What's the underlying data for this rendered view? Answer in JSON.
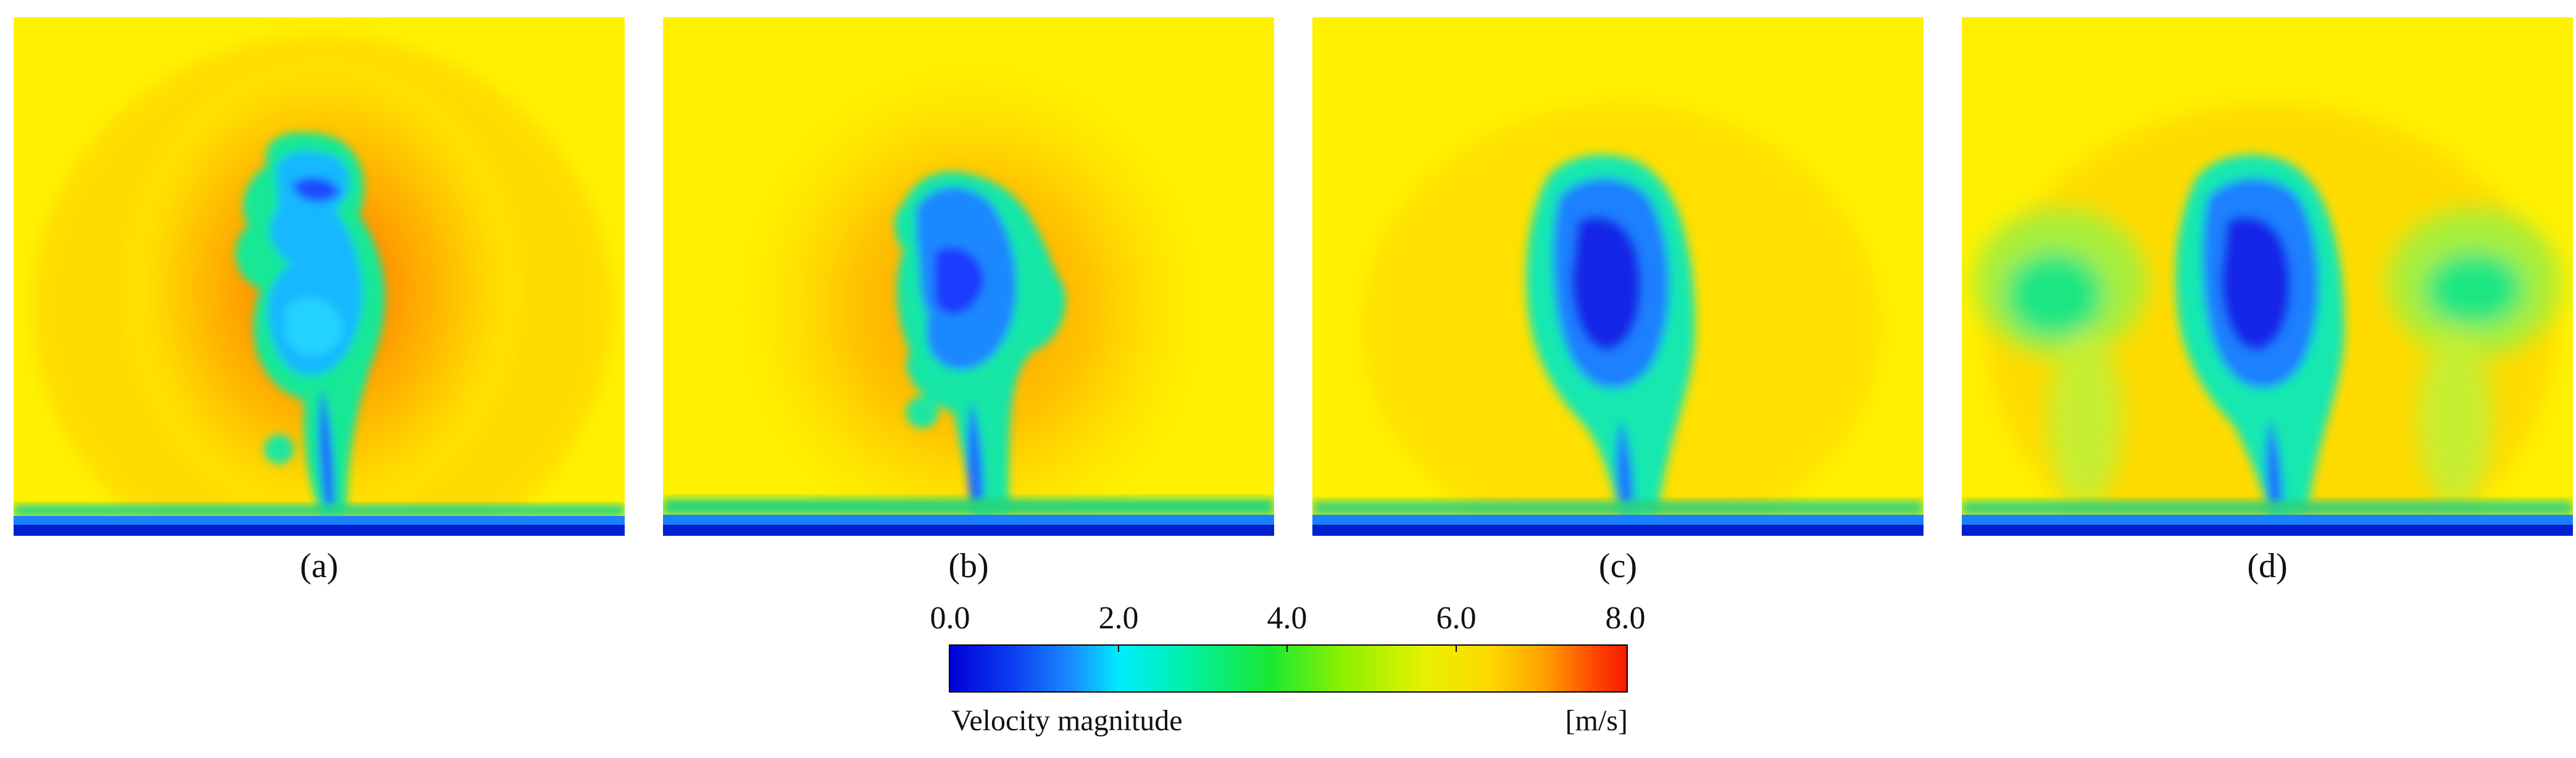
{
  "panels": [
    {
      "id": "a",
      "caption": "(a)"
    },
    {
      "id": "b",
      "caption": "(b)"
    },
    {
      "id": "c",
      "caption": "(c)"
    },
    {
      "id": "d",
      "caption": "(d)"
    }
  ],
  "colorbar": {
    "title": "Velocity magnitude",
    "unit": "[m/s]",
    "min": 0.0,
    "max": 8.0,
    "ticks": [
      "0.0",
      "2.0",
      "4.0",
      "6.0",
      "8.0"
    ],
    "colormap": [
      "#0000d8",
      "#1a8cff",
      "#00ecff",
      "#18e834",
      "#e6f200",
      "#ffd700",
      "#ff9f00",
      "#f51a00"
    ]
  }
}
